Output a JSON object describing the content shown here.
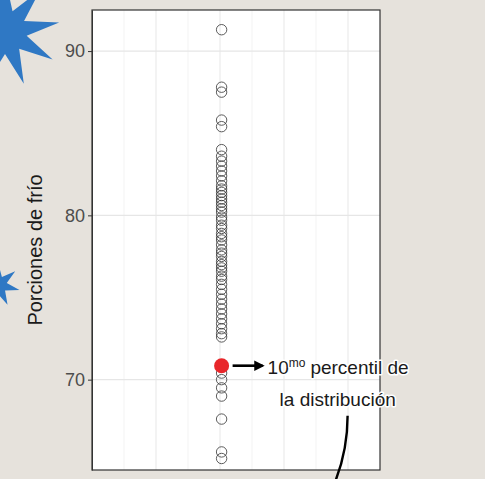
{
  "chart_data": {
    "type": "strip",
    "y_label": "Porciones de frío",
    "values": [
      91.3,
      87.8,
      87.5,
      85.8,
      85.4,
      84.0,
      83.6,
      83.3,
      83.0,
      82.7,
      82.4,
      82.1,
      81.8,
      81.6,
      81.4,
      81.2,
      81.0,
      80.8,
      80.6,
      80.4,
      80.2,
      79.9,
      79.7,
      79.4,
      79.2,
      78.9,
      78.7,
      78.5,
      78.2,
      77.9,
      77.7,
      77.5,
      77.2,
      77.0,
      76.8,
      76.6,
      76.3,
      76.1,
      75.8,
      75.5,
      75.2,
      74.9,
      74.6,
      74.3,
      74.0,
      73.7,
      73.4,
      73.1,
      72.8,
      72.6,
      70.4,
      70.0,
      69.5,
      69.0,
      67.6,
      65.6,
      65.2
    ],
    "color": "#333333",
    "marker": "open-circle",
    "highlight": {
      "value": 70.85,
      "color": "#e8262a"
    },
    "annotation": {
      "ordinal": "10",
      "ordinal_suffix": "mo",
      "text": [
        "percentil de",
        "la distribución"
      ]
    },
    "ylim": [
      64.5,
      92.5
    ],
    "yticks": [
      70,
      80,
      90
    ],
    "grid": true,
    "tick_labels": "y"
  }
}
